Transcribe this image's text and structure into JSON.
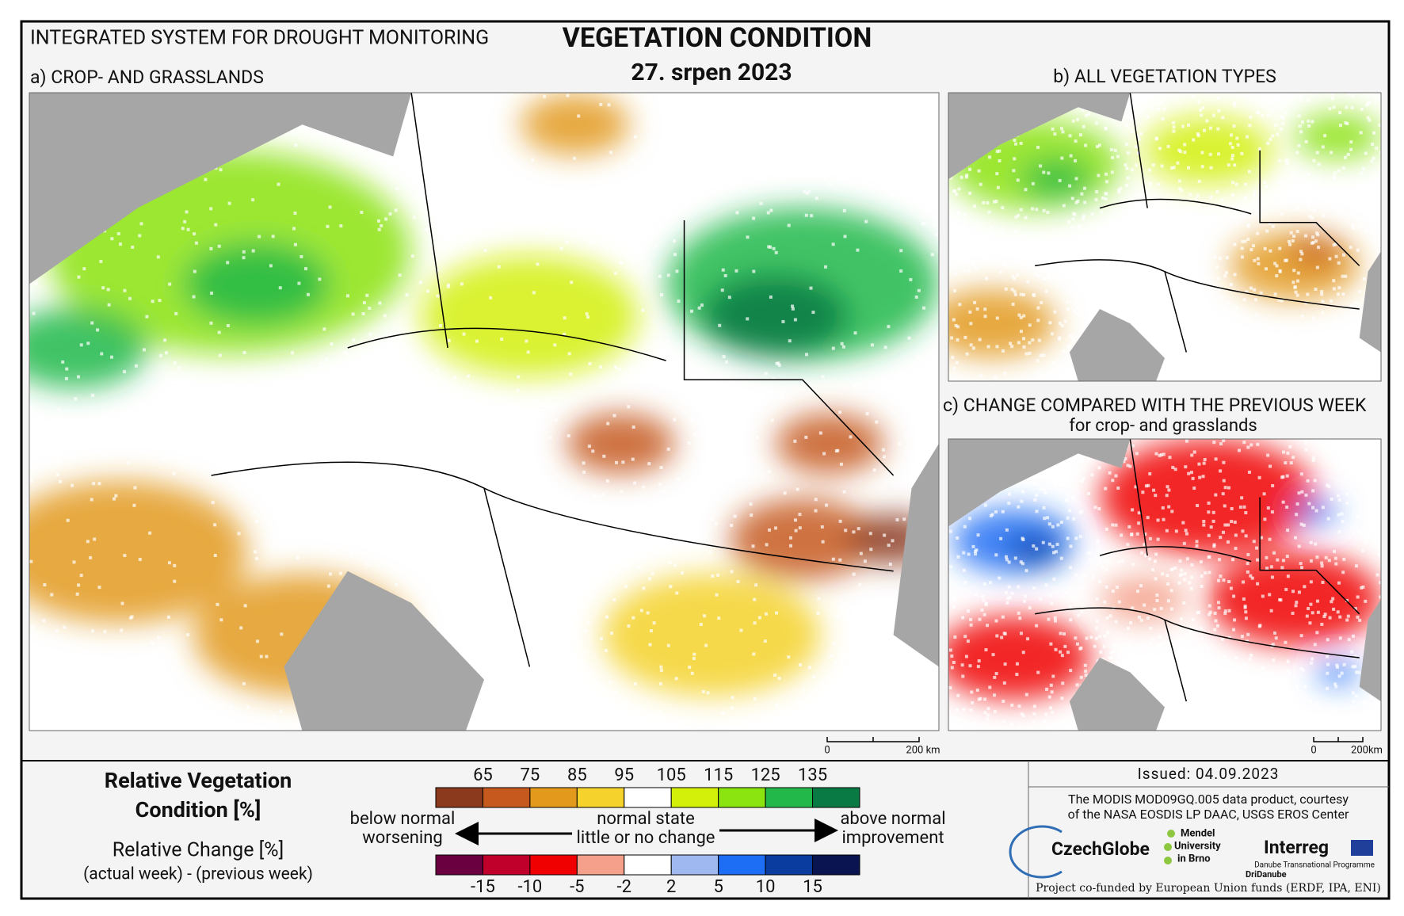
{
  "header": {
    "system": "INTEGRATED SYSTEM FOR DROUGHT MONITORING",
    "title": "VEGETATION CONDITION",
    "date": "27. srpen 2023"
  },
  "panels": [
    {
      "label": "a) CROP- AND GRASSLANDS",
      "scale": [
        "0",
        "200 km"
      ]
    },
    {
      "label": "b) ALL VEGETATION TYPES"
    },
    {
      "label": "c) CHANGE COMPARED WITH THE PREVIOUS WEEK",
      "sublabel": "for crop- and grasslands",
      "scale": [
        "0",
        "200km"
      ]
    }
  ],
  "legend": {
    "title": [
      "Relative Vegetation",
      "Condition [%]"
    ],
    "rvc": {
      "colors": [
        "#8b3a1e",
        "#c65a1e",
        "#e39a1c",
        "#f5d22c",
        "#ffffff",
        "#d3f00a",
        "#8be30f",
        "#22b84a",
        "#0a7a44"
      ],
      "ticks": [
        "65",
        "75",
        "85",
        "95",
        "105",
        "115",
        "125",
        "135"
      ]
    },
    "change_title": "Relative Change [%]",
    "change_subtitle": "(actual week) - (previous week)",
    "change": {
      "colors": [
        "#6b0040",
        "#c0002a",
        "#f00000",
        "#f5a08a",
        "#ffffff",
        "#a0b8f0",
        "#1e6ef5",
        "#0a3ca0",
        "#0a1450"
      ],
      "ticks": [
        "-15",
        "-10",
        "-5",
        "-2",
        "2",
        "5",
        "10",
        "15"
      ]
    },
    "left": [
      "below normal",
      "worsening"
    ],
    "center": [
      "normal state",
      "little or no change"
    ],
    "right": [
      "above normal",
      "improvement"
    ]
  },
  "footer": {
    "issued": "Issued: 04.09.2023",
    "credit": [
      "The MODIS MOD09GQ.005 data product, courtesy",
      "of the NASA EOSDIS LP DAAC, USGS EROS Center"
    ],
    "logos": [
      "CzechGlobe",
      "Mendel",
      "University",
      "in Brno",
      "Interreg",
      "Danube Transnational Programme",
      "DriDanube"
    ],
    "funding": "Project co-funded by European Union funds (ERDF, IPA, ENI)"
  }
}
